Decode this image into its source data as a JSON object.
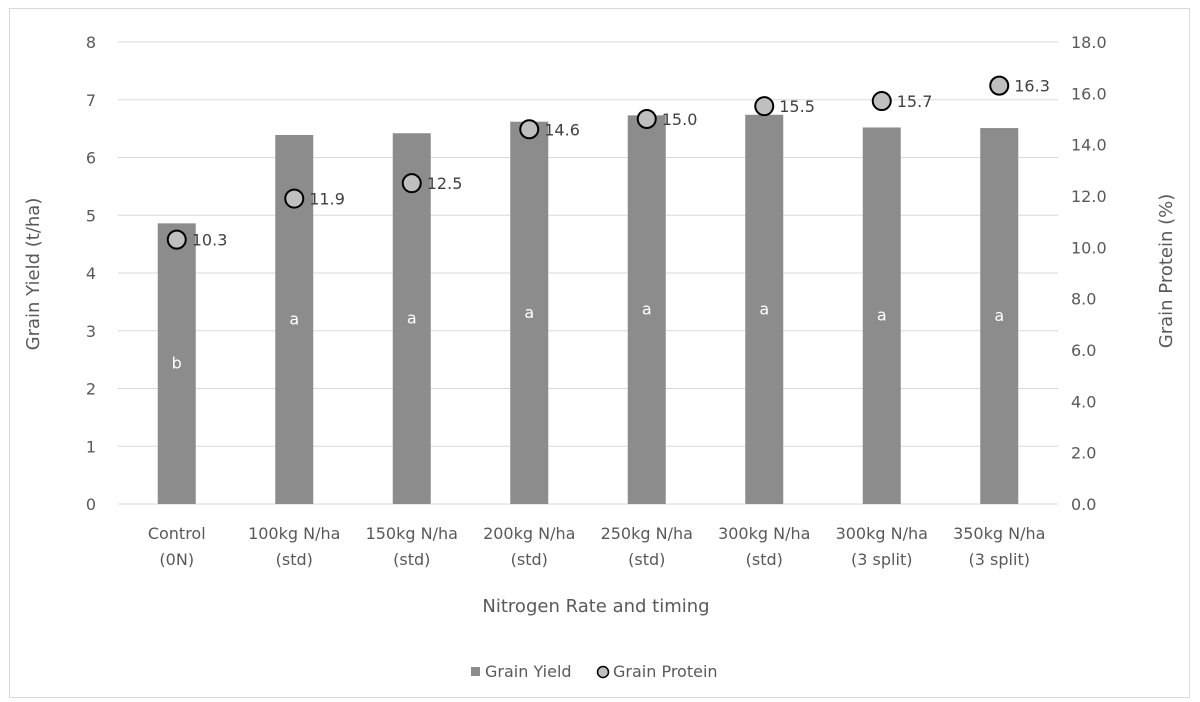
{
  "chart_data": {
    "type": "bar",
    "categories": [
      [
        "Control",
        "(0N)"
      ],
      [
        "100kg N/ha",
        "(std)"
      ],
      [
        "150kg N/ha",
        "(std)"
      ],
      [
        "200kg N/ha",
        "(std)"
      ],
      [
        "250kg N/ha",
        "(std)"
      ],
      [
        "300kg N/ha",
        "(std)"
      ],
      [
        "300kg N/ha",
        "(3 split)"
      ],
      [
        "350kg N/ha",
        "(3 split)"
      ]
    ],
    "series": [
      {
        "name": "Grain Yield",
        "type": "bar",
        "axis": "left",
        "values": [
          4.86,
          6.39,
          6.42,
          6.62,
          6.73,
          6.74,
          6.52,
          6.51
        ],
        "significance_labels": [
          "b",
          "a",
          "a",
          "a",
          "a",
          "a",
          "a",
          "a"
        ],
        "color": "#8c8c8c"
      },
      {
        "name": "Grain Protein",
        "type": "scatter",
        "axis": "right",
        "values": [
          10.3,
          11.9,
          12.5,
          14.6,
          15.0,
          15.5,
          15.7,
          16.3
        ],
        "data_labels": [
          "10.3",
          "11.9",
          "12.5",
          "14.6",
          "15.0",
          "15.5",
          "15.7",
          "16.3"
        ],
        "color": "#bfbfbf"
      }
    ],
    "xlabel": "Nitrogen Rate and timing",
    "ylabel": "Grain Yield (t/ha)",
    "y2label": "Grain Protein (%)",
    "ylim": [
      0,
      8
    ],
    "y2lim": [
      0,
      18
    ],
    "yticks": [
      "0",
      "1",
      "2",
      "3",
      "4",
      "5",
      "6",
      "7",
      "8"
    ],
    "y2ticks": [
      "0.0",
      "2.0",
      "4.0",
      "6.0",
      "8.0",
      "10.0",
      "12.0",
      "14.0",
      "16.0",
      "18.0"
    ],
    "grid": true,
    "legend": "bottom"
  }
}
